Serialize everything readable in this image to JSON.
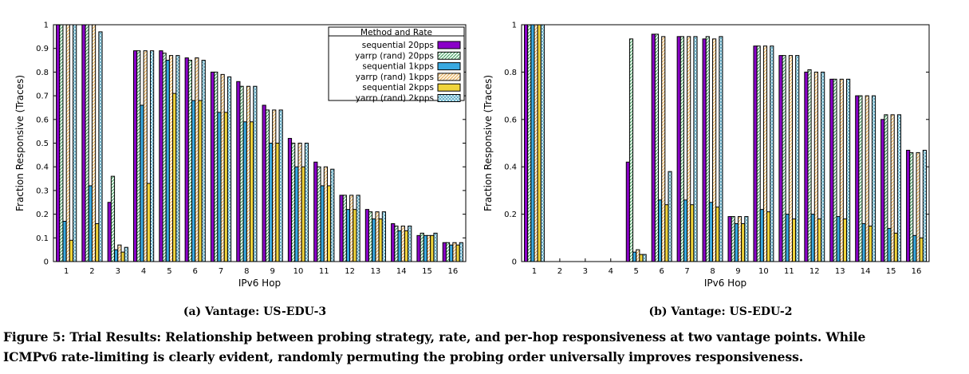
{
  "chart_data": [
    {
      "type": "bar",
      "subcaption": "(a) Vantage: US-EDU-3",
      "xlabel": "IPv6 Hop",
      "ylabel": "Fraction Responsive (Traces)",
      "ylim": [
        0,
        1
      ],
      "yticks": [
        "0",
        "0.1",
        "0.2",
        "0.3",
        "0.4",
        "0.5",
        "0.6",
        "0.7",
        "0.8",
        "0.9",
        "1"
      ],
      "legend": {
        "title": "Method and Rate",
        "placement": "top-right"
      },
      "categories": [
        "1",
        "2",
        "3",
        "4",
        "5",
        "6",
        "7",
        "8",
        "9",
        "10",
        "11",
        "12",
        "13",
        "14",
        "15",
        "16"
      ],
      "series": [
        {
          "name": "sequential 20pps",
          "values": [
            1.0,
            1.0,
            0.25,
            0.89,
            0.89,
            0.86,
            0.8,
            0.76,
            0.66,
            0.52,
            0.42,
            0.28,
            0.22,
            0.16,
            0.11,
            0.08
          ]
        },
        {
          "name": "yarrp (rand) 20pps",
          "values": [
            1.0,
            1.0,
            0.36,
            0.89,
            0.88,
            0.85,
            0.8,
            0.74,
            0.64,
            0.5,
            0.4,
            0.28,
            0.21,
            0.15,
            0.12,
            0.08
          ]
        },
        {
          "name": "sequential 1kpps",
          "values": [
            0.17,
            0.32,
            0.05,
            0.66,
            0.85,
            0.68,
            0.63,
            0.59,
            0.5,
            0.4,
            0.32,
            0.22,
            0.18,
            0.13,
            0.11,
            0.07
          ]
        },
        {
          "name": "yarrp (rand) 1kpps",
          "values": [
            1.0,
            1.0,
            0.07,
            0.89,
            0.87,
            0.86,
            0.79,
            0.74,
            0.64,
            0.5,
            0.4,
            0.28,
            0.21,
            0.15,
            0.11,
            0.08
          ]
        },
        {
          "name": "sequential 2kpps",
          "values": [
            0.09,
            0.16,
            0.04,
            0.33,
            0.71,
            0.68,
            0.63,
            0.59,
            0.5,
            0.4,
            0.32,
            0.22,
            0.18,
            0.13,
            0.11,
            0.07
          ]
        },
        {
          "name": "yarrp (rand) 2kpps",
          "values": [
            1.0,
            0.97,
            0.06,
            0.89,
            0.87,
            0.85,
            0.78,
            0.74,
            0.64,
            0.5,
            0.39,
            0.28,
            0.21,
            0.15,
            0.12,
            0.08
          ]
        }
      ]
    },
    {
      "type": "bar",
      "subcaption": "(b) Vantage: US-EDU-2",
      "xlabel": "IPv6 Hop",
      "ylabel": "Fraction Responsive (Traces)",
      "ylim": [
        0,
        1
      ],
      "yticks": [
        "0",
        "0.2",
        "0.4",
        "0.6",
        "0.8",
        "1"
      ],
      "categories": [
        "1",
        "2",
        "3",
        "4",
        "5",
        "6",
        "7",
        "8",
        "9",
        "10",
        "11",
        "12",
        "13",
        "14",
        "15",
        "16"
      ],
      "series": [
        {
          "name": "sequential 20pps",
          "values": [
            1.0,
            0,
            0,
            0,
            0.42,
            0.96,
            0.95,
            0.94,
            0.19,
            0.91,
            0.87,
            0.8,
            0.77,
            0.7,
            0.6,
            0.47
          ]
        },
        {
          "name": "yarrp (rand) 20pps",
          "values": [
            1.0,
            0,
            0,
            0,
            0.94,
            0.96,
            0.95,
            0.95,
            0.19,
            0.91,
            0.87,
            0.81,
            0.77,
            0.7,
            0.62,
            0.46
          ]
        },
        {
          "name": "sequential 1kpps",
          "values": [
            1.0,
            0,
            0,
            0,
            0.04,
            0.26,
            0.26,
            0.25,
            0.16,
            0.22,
            0.2,
            0.2,
            0.19,
            0.16,
            0.14,
            0.11
          ]
        },
        {
          "name": "yarrp (rand) 1kpps",
          "values": [
            1.0,
            0,
            0,
            0,
            0.05,
            0.95,
            0.95,
            0.94,
            0.19,
            0.91,
            0.87,
            0.8,
            0.77,
            0.7,
            0.62,
            0.46
          ]
        },
        {
          "name": "sequential 2kpps",
          "values": [
            1.0,
            0,
            0,
            0,
            0.03,
            0.24,
            0.24,
            0.23,
            0.16,
            0.21,
            0.18,
            0.18,
            0.18,
            0.15,
            0.12,
            0.1
          ]
        },
        {
          "name": "yarrp (rand) 2kpps",
          "values": [
            1.0,
            0,
            0,
            0,
            0.03,
            0.38,
            0.95,
            0.95,
            0.19,
            0.91,
            0.87,
            0.8,
            0.77,
            0.7,
            0.62,
            0.47
          ]
        }
      ]
    }
  ],
  "series_colors": [
    "#8a00c8",
    "#e8f8ec",
    "#39a9e0",
    "#f5dcb3",
    "#f0d43c",
    "#c8eef8"
  ],
  "caption": {
    "line1": "Figure 5: Trial Results: Relationship between probing strategy, rate, and per-hop responsiveness at two vantage points. While",
    "line2": "ICMPv6 rate-limiting is clearly evident, randomly permuting the probing order universally improves responsiveness."
  }
}
